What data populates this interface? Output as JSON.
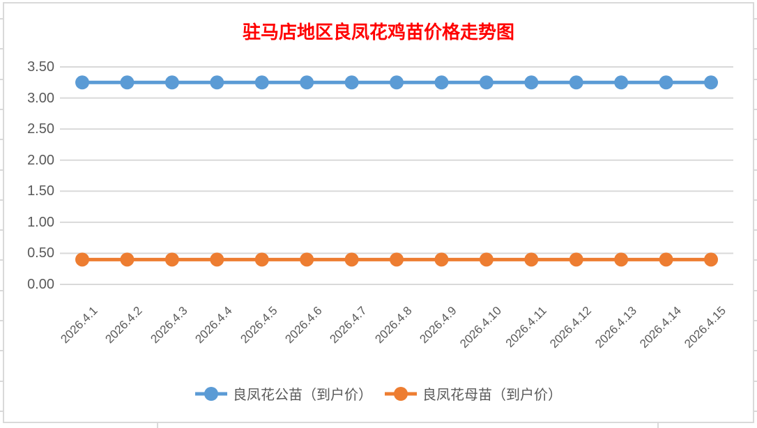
{
  "chart_data": {
    "type": "line",
    "title": "驻马店地区良凤花鸡苗价格走势图",
    "title_color": "#FF0000",
    "xlabel": "",
    "ylabel": "",
    "categories": [
      "2026.4.1",
      "2026.4.2",
      "2026.4.3",
      "2026.4.4",
      "2026.4.5",
      "2026.4.6",
      "2026.4.7",
      "2026.4.8",
      "2026.4.9",
      "2026.4.10",
      "2026.4.11",
      "2026.4.12",
      "2026.4.13",
      "2026.4.14",
      "2026.4.15"
    ],
    "series": [
      {
        "name": "良凤花公苗（到户价）",
        "color": "#5B9BD5",
        "values": [
          3.25,
          3.25,
          3.25,
          3.25,
          3.25,
          3.25,
          3.25,
          3.25,
          3.25,
          3.25,
          3.25,
          3.25,
          3.25,
          3.25,
          3.25
        ]
      },
      {
        "name": "良凤花母苗（到户价）",
        "color": "#ED7D31",
        "values": [
          0.4,
          0.4,
          0.4,
          0.4,
          0.4,
          0.4,
          0.4,
          0.4,
          0.4,
          0.4,
          0.4,
          0.4,
          0.4,
          0.4,
          0.4
        ]
      }
    ],
    "ylim": [
      0,
      3.5
    ],
    "ytick_step": 0.5,
    "ytick_labels": [
      "0.00",
      "0.50",
      "1.00",
      "1.50",
      "2.00",
      "2.50",
      "3.00",
      "3.50"
    ],
    "grid": "horizontal",
    "gridline_color": "#D9D9D9",
    "axis_text_color": "#595959",
    "legend_position": "bottom"
  }
}
